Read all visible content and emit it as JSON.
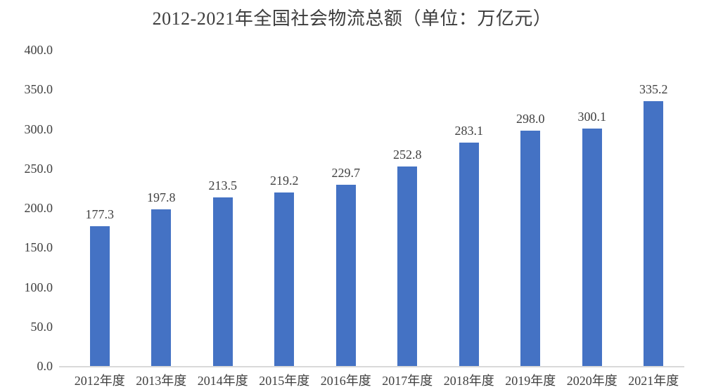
{
  "chart_data": {
    "type": "bar",
    "title": "2012-2021年全国社会物流总额（单位：万亿元）",
    "categories": [
      "2012年度",
      "2013年度",
      "2014年度",
      "2015年度",
      "2016年度",
      "2017年度",
      "2018年度",
      "2019年度",
      "2020年度",
      "2021年度"
    ],
    "values": [
      177.3,
      197.8,
      213.5,
      219.2,
      229.7,
      252.8,
      283.1,
      298.0,
      300.1,
      335.2
    ],
    "data_labels": [
      "177.3",
      "197.8",
      "213.5",
      "219.2",
      "229.7",
      "252.8",
      "283.1",
      "298.0",
      "300.1",
      "335.2"
    ],
    "xlabel": "",
    "ylabel": "",
    "ylim": [
      0,
      400
    ],
    "yticks": [
      {
        "value": 0,
        "label": "0.0"
      },
      {
        "value": 50,
        "label": "50.0"
      },
      {
        "value": 100,
        "label": "100.0"
      },
      {
        "value": 150,
        "label": "150.0"
      },
      {
        "value": 200,
        "label": "200.0"
      },
      {
        "value": 250,
        "label": "250.0"
      },
      {
        "value": 300,
        "label": "300.0"
      },
      {
        "value": 350,
        "label": "350.0"
      },
      {
        "value": 400,
        "label": "400.0"
      }
    ],
    "grid": false,
    "legend_position": "none",
    "colors": {
      "bar": "#4472C4",
      "text": "#404040",
      "title_text": "#3d3d3d",
      "axis_line": "#D9D9D9",
      "background": "#FFFFFF"
    }
  }
}
